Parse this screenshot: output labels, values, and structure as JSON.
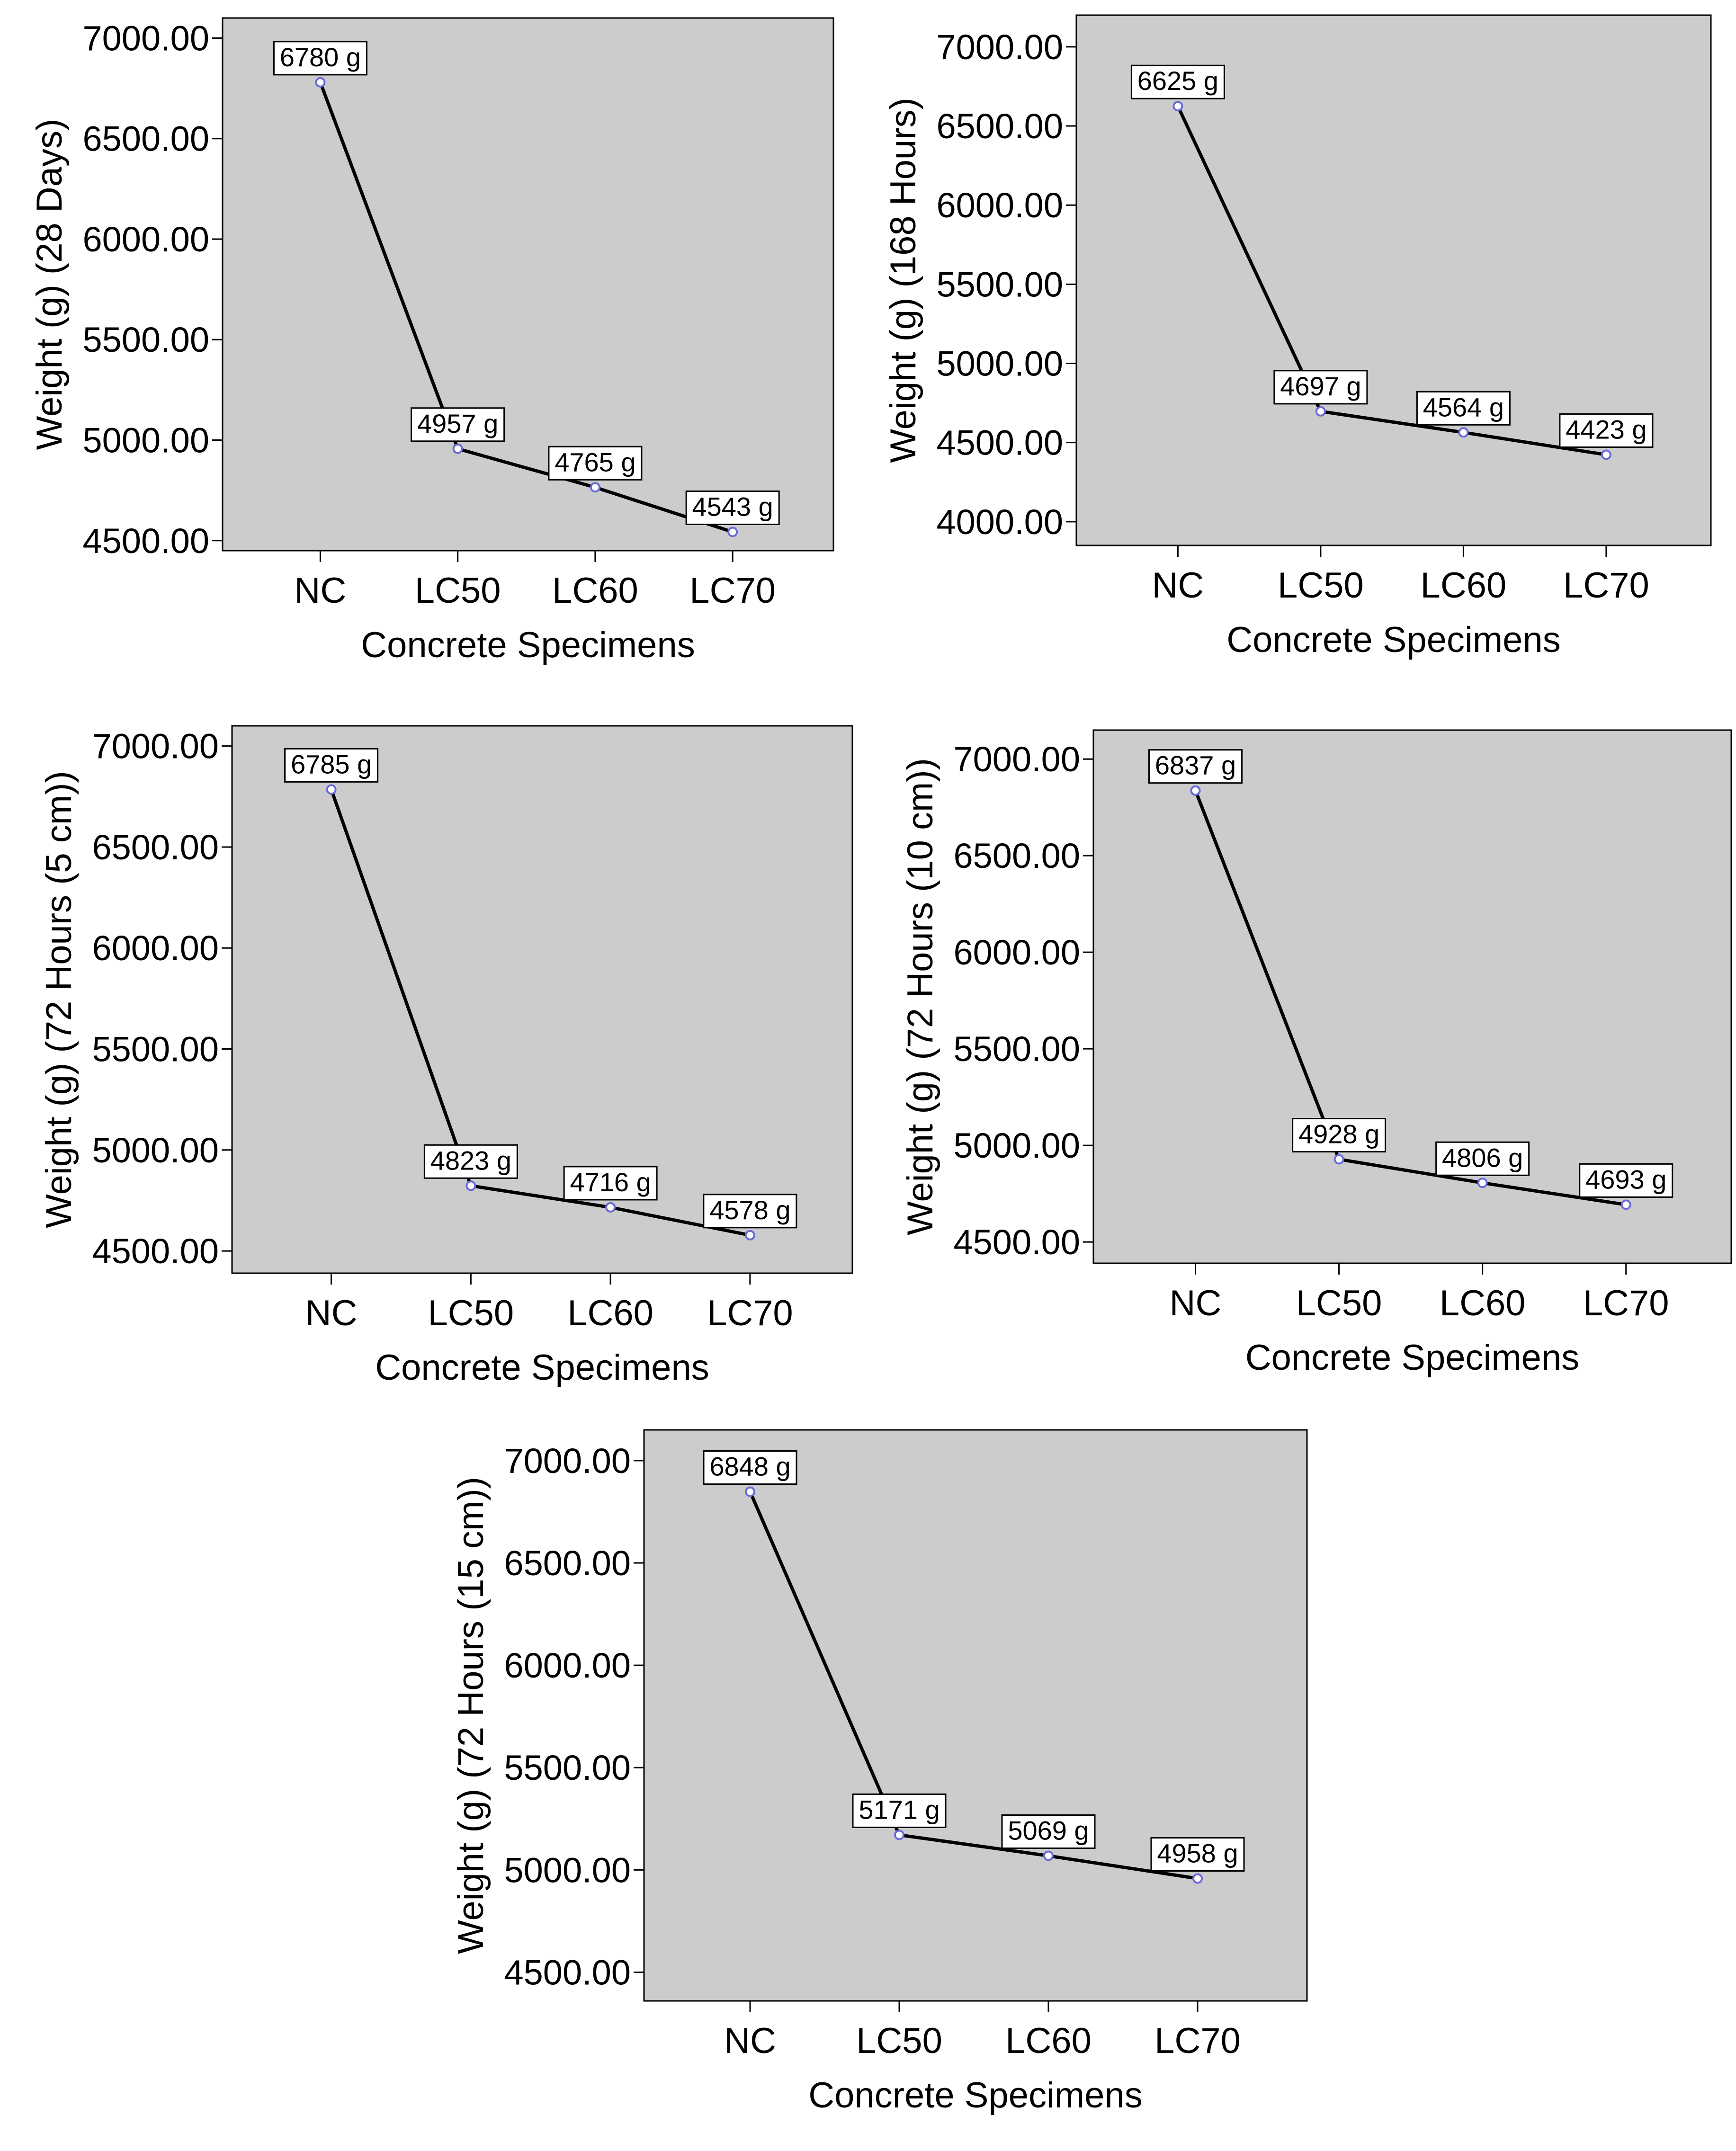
{
  "chart_data": [
    {
      "type": "line",
      "categories": [
        "NC",
        "LC50",
        "LC60",
        "LC70"
      ],
      "values": [
        6780,
        4957,
        4765,
        4543
      ],
      "point_labels": [
        "6780 g",
        "4957 g",
        "4765 g",
        "4543 g"
      ],
      "xlabel": "Concrete Specimens",
      "ylabel": "Weight (g) (28 Days)",
      "ylim": [
        4450,
        7100
      ],
      "yticks": [
        4500,
        5000,
        5500,
        6000,
        6500,
        7000
      ],
      "ytick_labels": [
        "4500.00",
        "5000.00",
        "5500.00",
        "6000.00",
        "6500.00",
        "7000.00"
      ],
      "plot_background": "#cccccc",
      "line_color": "#000000",
      "marker_color": "#6a6ad8",
      "grid": false
    },
    {
      "type": "line",
      "categories": [
        "NC",
        "LC50",
        "LC60",
        "LC70"
      ],
      "values": [
        6625,
        4697,
        4564,
        4423
      ],
      "point_labels": [
        "6625 g",
        "4697 g",
        "4564 g",
        "4423 g"
      ],
      "xlabel": "Concrete Specimens",
      "ylabel": "Weight (g) (168 Hours)",
      "ylim": [
        3850,
        7200
      ],
      "yticks": [
        4000,
        4500,
        5000,
        5500,
        6000,
        6500,
        7000
      ],
      "ytick_labels": [
        "4000.00",
        "4500.00",
        "5000.00",
        "5500.00",
        "6000.00",
        "6500.00",
        "7000.00"
      ],
      "plot_background": "#cccccc",
      "line_color": "#000000",
      "marker_color": "#6a6ad8",
      "grid": false
    },
    {
      "type": "line",
      "categories": [
        "NC",
        "LC50",
        "LC60",
        "LC70"
      ],
      "values": [
        6785,
        4823,
        4716,
        4578
      ],
      "point_labels": [
        "6785 g",
        "4823 g",
        "4716 g",
        "4578 g"
      ],
      "xlabel": "Concrete Specimens",
      "ylabel": "Weight (g) (72 Hours (5 cm))",
      "ylim": [
        4390,
        7100
      ],
      "yticks": [
        4500,
        5000,
        5500,
        6000,
        6500,
        7000
      ],
      "ytick_labels": [
        "4500.00",
        "5000.00",
        "5500.00",
        "6000.00",
        "6500.00",
        "7000.00"
      ],
      "plot_background": "#cccccc",
      "line_color": "#000000",
      "marker_color": "#6a6ad8",
      "grid": false
    },
    {
      "type": "line",
      "categories": [
        "NC",
        "LC50",
        "LC60",
        "LC70"
      ],
      "values": [
        6837,
        4928,
        4806,
        4693
      ],
      "point_labels": [
        "6837 g",
        "4928 g",
        "4806 g",
        "4693 g"
      ],
      "xlabel": "Concrete Specimens",
      "ylabel": "Weight (g) (72 Hours (10 cm))",
      "ylim": [
        4390,
        7150
      ],
      "yticks": [
        4500,
        5000,
        5500,
        6000,
        6500,
        7000
      ],
      "ytick_labels": [
        "4500.00",
        "5000.00",
        "5500.00",
        "6000.00",
        "6500.00",
        "7000.00"
      ],
      "plot_background": "#cccccc",
      "line_color": "#000000",
      "marker_color": "#6a6ad8",
      "grid": false
    },
    {
      "type": "line",
      "categories": [
        "NC",
        "LC50",
        "LC60",
        "LC70"
      ],
      "values": [
        6848,
        5171,
        5069,
        4958
      ],
      "point_labels": [
        "6848 g",
        "5171 g",
        "5069 g",
        "4958 g"
      ],
      "xlabel": "Concrete Specimens",
      "ylabel": "Weight (g) (72 Hours (15 cm))",
      "ylim": [
        4360,
        7150
      ],
      "yticks": [
        4500,
        5000,
        5500,
        6000,
        6500,
        7000
      ],
      "ytick_labels": [
        "4500.00",
        "5000.00",
        "5500.00",
        "6000.00",
        "6500.00",
        "7000.00"
      ],
      "plot_background": "#cccccc",
      "line_color": "#000000",
      "marker_color": "#6a6ad8",
      "grid": false
    }
  ]
}
